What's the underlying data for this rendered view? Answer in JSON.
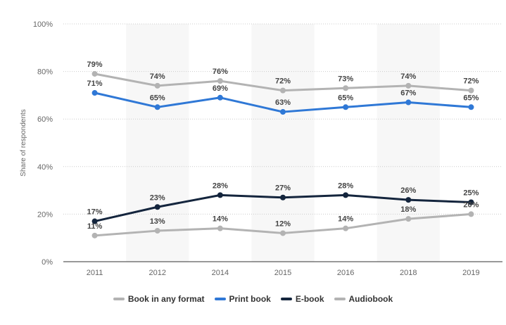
{
  "chart_data": {
    "type": "line",
    "categories": [
      "2011",
      "2012",
      "2014",
      "2015",
      "2016",
      "2018",
      "2019"
    ],
    "series": [
      {
        "name": "Book in any format",
        "color": "#b3b3b3",
        "values": [
          79,
          74,
          76,
          72,
          73,
          74,
          72
        ]
      },
      {
        "name": "Print book",
        "color": "#2f78d6",
        "values": [
          71,
          65,
          69,
          63,
          65,
          67,
          65
        ]
      },
      {
        "name": "E-book",
        "color": "#14253d",
        "values": [
          17,
          23,
          28,
          27,
          28,
          26,
          25
        ]
      },
      {
        "name": "Audiobook",
        "color": "#b3b3b3",
        "values": [
          11,
          13,
          14,
          12,
          14,
          18,
          20
        ]
      }
    ],
    "yticks": [
      "0%",
      "20%",
      "40%",
      "60%",
      "80%",
      "100%"
    ],
    "ylabel": "Share of respondents",
    "xlabel": "",
    "ylim": [
      0,
      100
    ],
    "grid": true,
    "legend": "bottom"
  }
}
